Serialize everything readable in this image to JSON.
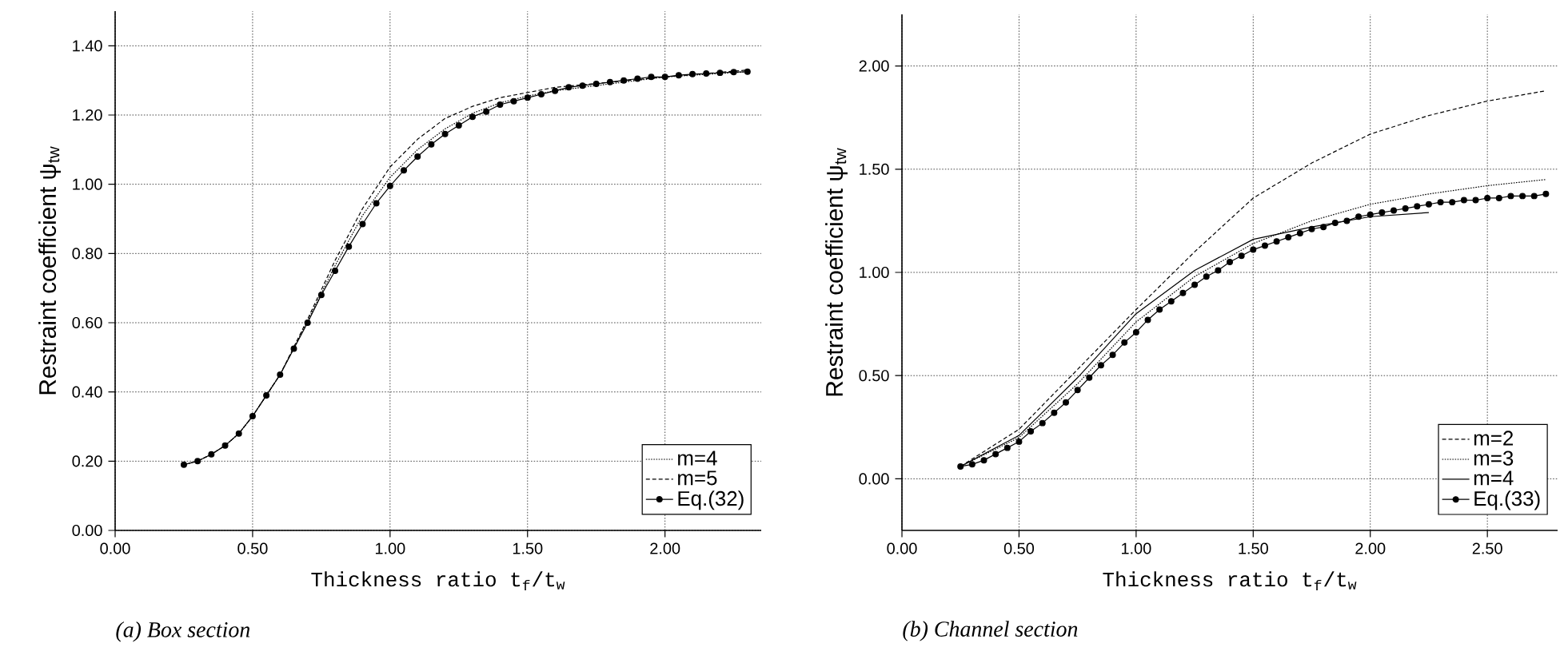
{
  "chart_data": [
    {
      "type": "line",
      "xlabel": "Thickness ratio t$_{f}$/t$_{w}$",
      "ylabel": "Restraint coefficient ψ$_{tw}$",
      "annotations": [
        "(a) Box section"
      ],
      "xlim": [
        0,
        2.35
      ],
      "ylim": [
        0,
        1.5
      ],
      "xticks": [
        {
          "value": 0,
          "label": "0.00"
        },
        {
          "value": 0.5,
          "label": "0.50"
        },
        {
          "value": 1,
          "label": "1.00"
        },
        {
          "value": 1.5,
          "label": "1.50"
        },
        {
          "value": 2,
          "label": "2.00"
        }
      ],
      "yticks": [
        {
          "value": 0,
          "label": "0.00"
        },
        {
          "value": 0.2,
          "label": "0.20"
        },
        {
          "value": 0.4,
          "label": "0.40"
        },
        {
          "value": 0.6,
          "label": "0.60"
        },
        {
          "value": 0.8,
          "label": "0.80"
        },
        {
          "value": 1,
          "label": "1.00"
        },
        {
          "value": 1.2,
          "label": "1.20"
        },
        {
          "value": 1.4,
          "label": "1.40"
        }
      ],
      "grid": true,
      "legend": "bottom right",
      "series": [
        {
          "name": "m=4",
          "color": "#000000",
          "line_style": "dotted",
          "marker": "none",
          "x": [
            0.25,
            0.3,
            0.35,
            0.4,
            0.45,
            0.5,
            0.6,
            0.7,
            0.8,
            0.9,
            1.0,
            1.1,
            1.2,
            1.3,
            1.4,
            1.5,
            1.6,
            1.8,
            2.0,
            2.3
          ],
          "values": [
            0.19,
            0.2,
            0.22,
            0.245,
            0.28,
            0.33,
            0.45,
            0.605,
            0.765,
            0.91,
            1.02,
            1.1,
            1.16,
            1.205,
            1.235,
            1.255,
            1.27,
            1.29,
            1.31,
            1.325
          ]
        },
        {
          "name": "m=5",
          "color": "#000000",
          "line_style": "dashed",
          "marker": "none",
          "x": [
            0.3,
            0.35,
            0.4,
            0.45,
            0.5,
            0.6,
            0.7,
            0.8,
            0.9,
            1.0,
            1.1,
            1.2,
            1.3,
            1.4,
            1.5,
            1.6,
            1.8,
            2.0,
            2.3
          ],
          "values": [
            0.2,
            0.22,
            0.245,
            0.28,
            0.33,
            0.45,
            0.61,
            0.78,
            0.93,
            1.05,
            1.13,
            1.19,
            1.225,
            1.25,
            1.265,
            1.28,
            1.295,
            1.31,
            1.33
          ]
        },
        {
          "name": "Eq.(32)",
          "color": "#000000",
          "line_style": "solid",
          "marker": "circle",
          "x": [
            0.25,
            0.3,
            0.35,
            0.4,
            0.45,
            0.5,
            0.55,
            0.6,
            0.65,
            0.7,
            0.75,
            0.8,
            0.85,
            0.9,
            0.95,
            1.0,
            1.05,
            1.1,
            1.15,
            1.2,
            1.25,
            1.3,
            1.35,
            1.4,
            1.45,
            1.5,
            1.55,
            1.6,
            1.65,
            1.7,
            1.75,
            1.8,
            1.85,
            1.9,
            1.95,
            2.0,
            2.05,
            2.1,
            2.15,
            2.2,
            2.25,
            2.3
          ],
          "values": [
            0.19,
            0.2,
            0.22,
            0.245,
            0.28,
            0.33,
            0.39,
            0.45,
            0.525,
            0.6,
            0.68,
            0.75,
            0.82,
            0.885,
            0.945,
            0.995,
            1.04,
            1.08,
            1.115,
            1.145,
            1.17,
            1.195,
            1.21,
            1.23,
            1.24,
            1.25,
            1.26,
            1.27,
            1.28,
            1.285,
            1.29,
            1.295,
            1.3,
            1.305,
            1.31,
            1.31,
            1.315,
            1.318,
            1.32,
            1.322,
            1.324,
            1.325
          ]
        }
      ]
    },
    {
      "type": "line",
      "xlabel": "Thickness ratio t$_{f}$/t$_{w}$",
      "ylabel": "Restraint coefficient ψ$_{tw}$",
      "annotations": [
        "(b) Channel section"
      ],
      "xlim": [
        0,
        2.8
      ],
      "ylim": [
        -0.25,
        2.25
      ],
      "xticks": [
        {
          "value": 0,
          "label": "0.00"
        },
        {
          "value": 0.5,
          "label": "0.50"
        },
        {
          "value": 1,
          "label": "1.00"
        },
        {
          "value": 1.5,
          "label": "1.50"
        },
        {
          "value": 2,
          "label": "2.00"
        },
        {
          "value": 2.5,
          "label": "2.50"
        }
      ],
      "yticks": [
        {
          "value": 0,
          "label": "0.00"
        },
        {
          "value": 0.5,
          "label": "0.50"
        },
        {
          "value": 1,
          "label": "1.00"
        },
        {
          "value": 1.5,
          "label": "1.50"
        },
        {
          "value": 2,
          "label": "2.00"
        }
      ],
      "grid": true,
      "legend": "bottom right",
      "series": [
        {
          "name": "m=2",
          "color": "#000000",
          "line_style": "dashed",
          "marker": "none",
          "x": [
            0.25,
            0.5,
            0.75,
            1.0,
            1.25,
            1.5,
            1.75,
            2.0,
            2.25,
            2.5,
            2.75
          ],
          "values": [
            0.06,
            0.24,
            0.53,
            0.82,
            1.1,
            1.36,
            1.53,
            1.67,
            1.76,
            1.83,
            1.88
          ]
        },
        {
          "name": "m=3",
          "color": "#000000",
          "line_style": "dotted",
          "marker": "none",
          "x": [
            0.25,
            0.5,
            0.75,
            1.0,
            1.25,
            1.5,
            1.75,
            2.0,
            2.25,
            2.5,
            2.75
          ],
          "values": [
            0.06,
            0.2,
            0.46,
            0.76,
            0.98,
            1.14,
            1.25,
            1.33,
            1.38,
            1.42,
            1.45
          ]
        },
        {
          "name": "m=4",
          "color": "#000000",
          "line_style": "solid",
          "marker": "none",
          "x": [
            0.25,
            0.5,
            0.75,
            1.0,
            1.25,
            1.5,
            1.75,
            2.0,
            2.25
          ],
          "values": [
            0.06,
            0.21,
            0.49,
            0.8,
            1.01,
            1.16,
            1.22,
            1.27,
            1.29
          ]
        },
        {
          "name": "Eq.(33)",
          "color": "#000000",
          "line_style": "solid",
          "marker": "circle",
          "x": [
            0.25,
            0.3,
            0.35,
            0.4,
            0.45,
            0.5,
            0.55,
            0.6,
            0.65,
            0.7,
            0.75,
            0.8,
            0.85,
            0.9,
            0.95,
            1.0,
            1.05,
            1.1,
            1.15,
            1.2,
            1.25,
            1.3,
            1.35,
            1.4,
            1.45,
            1.5,
            1.55,
            1.6,
            1.65,
            1.7,
            1.75,
            1.8,
            1.85,
            1.9,
            1.95,
            2.0,
            2.05,
            2.1,
            2.15,
            2.2,
            2.25,
            2.3,
            2.35,
            2.4,
            2.45,
            2.5,
            2.55,
            2.6,
            2.65,
            2.7,
            2.75
          ],
          "values": [
            0.06,
            0.07,
            0.09,
            0.12,
            0.15,
            0.18,
            0.23,
            0.27,
            0.32,
            0.37,
            0.43,
            0.49,
            0.55,
            0.6,
            0.66,
            0.71,
            0.77,
            0.82,
            0.86,
            0.9,
            0.94,
            0.98,
            1.01,
            1.05,
            1.08,
            1.11,
            1.13,
            1.15,
            1.17,
            1.19,
            1.21,
            1.22,
            1.24,
            1.25,
            1.27,
            1.28,
            1.29,
            1.3,
            1.31,
            1.32,
            1.33,
            1.34,
            1.34,
            1.35,
            1.35,
            1.36,
            1.36,
            1.37,
            1.37,
            1.37,
            1.38
          ]
        }
      ]
    }
  ]
}
